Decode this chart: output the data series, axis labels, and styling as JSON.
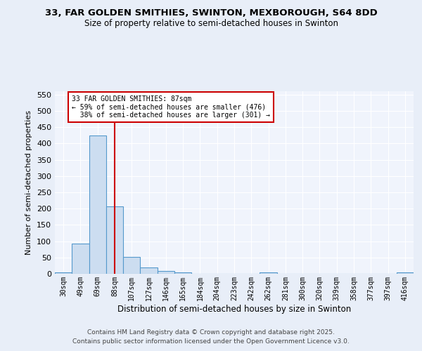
{
  "title_line1": "33, FAR GOLDEN SMITHIES, SWINTON, MEXBOROUGH, S64 8DD",
  "title_line2": "Size of property relative to semi-detached houses in Swinton",
  "xlabel": "Distribution of semi-detached houses by size in Swinton",
  "ylabel": "Number of semi-detached properties",
  "bin_labels": [
    "30sqm",
    "49sqm",
    "69sqm",
    "88sqm",
    "107sqm",
    "127sqm",
    "146sqm",
    "165sqm",
    "184sqm",
    "204sqm",
    "223sqm",
    "242sqm",
    "262sqm",
    "281sqm",
    "300sqm",
    "320sqm",
    "339sqm",
    "358sqm",
    "377sqm",
    "397sqm",
    "416sqm"
  ],
  "bar_heights": [
    5,
    93,
    424,
    207,
    51,
    19,
    8,
    5,
    0,
    0,
    0,
    0,
    5,
    0,
    0,
    0,
    0,
    0,
    0,
    0,
    5
  ],
  "bar_color": "#ccddf0",
  "bar_edge_color": "#5599cc",
  "red_line_index": 3,
  "red_line_color": "#cc0000",
  "annotation_line1": "33 FAR GOLDEN SMITHIES: 87sqm",
  "annotation_line2": "← 59% of semi-detached houses are smaller (476)",
  "annotation_line3": "  38% of semi-detached houses are larger (301) →",
  "annotation_box_color": "#cc0000",
  "annotation_fill_color": "#ffffff",
  "ylim": [
    0,
    560
  ],
  "yticks": [
    0,
    50,
    100,
    150,
    200,
    250,
    300,
    350,
    400,
    450,
    500,
    550
  ],
  "bg_color": "#e8eef8",
  "plot_bg_color": "#f0f4fc",
  "grid_color": "#ffffff",
  "footer_line1": "Contains HM Land Registry data © Crown copyright and database right 2025.",
  "footer_line2": "Contains public sector information licensed under the Open Government Licence v3.0."
}
